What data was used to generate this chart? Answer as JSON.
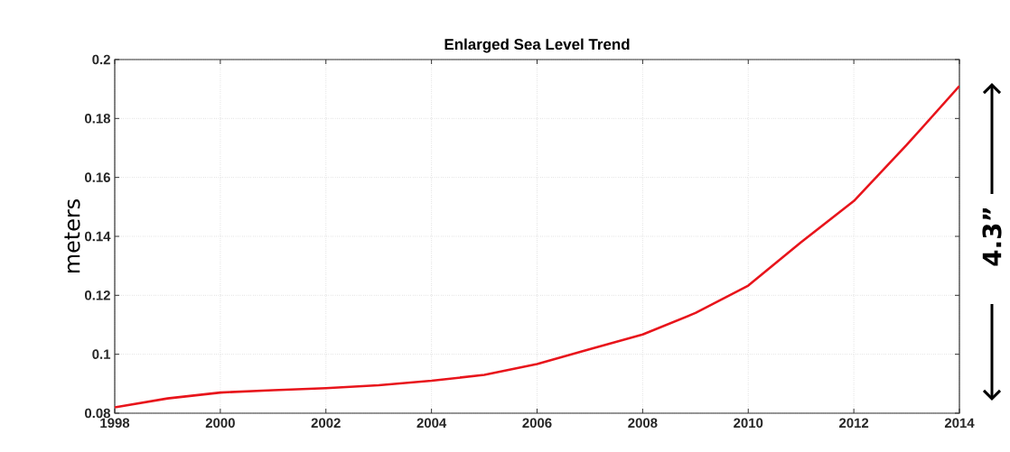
{
  "chart_data": {
    "type": "line",
    "title": "Enlarged Sea Level Trend",
    "ylabel": "meters",
    "x": [
      1998,
      1999,
      2000,
      2001,
      2002,
      2003,
      2004,
      2005,
      2006,
      2007,
      2008,
      2009,
      2010,
      2011,
      2012,
      2013,
      2014
    ],
    "values": [
      0.082,
      0.085,
      0.087,
      0.0878,
      0.0885,
      0.0895,
      0.091,
      0.093,
      0.0967,
      0.1017,
      0.1067,
      0.114,
      0.1233,
      0.138,
      0.152,
      0.171,
      0.191
    ],
    "color": "#e8141b",
    "xlim": [
      1998,
      2014
    ],
    "ylim": [
      0.08,
      0.2
    ],
    "xticks": [
      1998,
      2000,
      2002,
      2004,
      2006,
      2008,
      2010,
      2012,
      2014
    ],
    "yticks": [
      0.08,
      0.1,
      0.12,
      0.14,
      0.16,
      0.18,
      0.2
    ],
    "grid": true,
    "line_style": "solid",
    "annotations": [
      "4.3”"
    ]
  }
}
